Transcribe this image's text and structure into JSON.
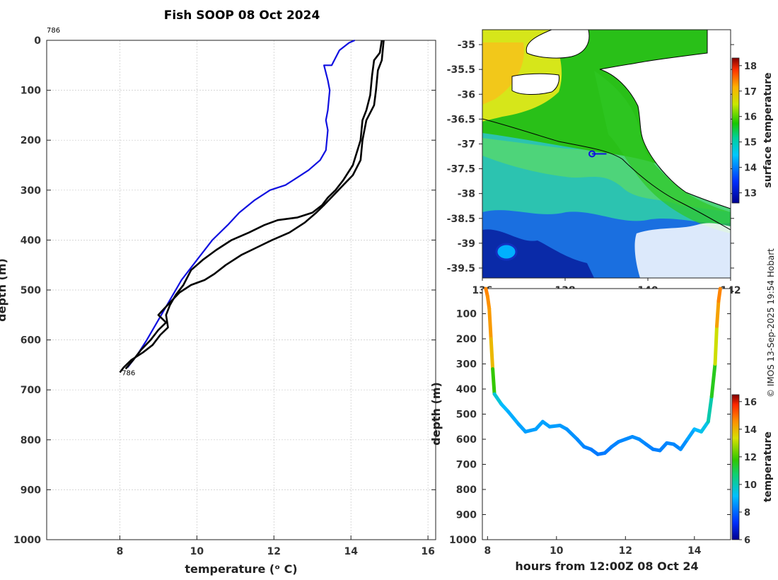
{
  "figure_title": "Fish SOOP 08 Oct 2024",
  "credit": "© IMOS 13-Sep-2025 19:54 Hobart",
  "colors": {
    "black_trace": "#000000",
    "blue_trace": "#1010e0",
    "grid": "#c8c8c8",
    "land": "#ffffff"
  },
  "chart_data": [
    {
      "id": "profile",
      "type": "line",
      "xlabel": "temperature (ᵒ C)",
      "ylabel": "depth (m)",
      "xlim": [
        6.1,
        16.2
      ],
      "ylim": [
        0,
        1000
      ],
      "xticks": [
        8,
        10,
        12,
        14,
        16
      ],
      "yticks": [
        0,
        100,
        200,
        300,
        400,
        500,
        600,
        700,
        800,
        900,
        1000
      ],
      "annotations": [
        {
          "text": "786",
          "x": 6.1,
          "y": -20
        },
        {
          "text": "786",
          "x": 8.05,
          "y": 668
        }
      ],
      "series": [
        {
          "name": "profile-blue",
          "color": "#1010e0",
          "points": [
            [
              14.1,
              0
            ],
            [
              13.95,
              5
            ],
            [
              13.7,
              20
            ],
            [
              13.5,
              50
            ],
            [
              13.3,
              50
            ],
            [
              13.4,
              80
            ],
            [
              13.45,
              100
            ],
            [
              13.4,
              140
            ],
            [
              13.35,
              160
            ],
            [
              13.4,
              180
            ],
            [
              13.35,
              220
            ],
            [
              13.2,
              240
            ],
            [
              12.9,
              260
            ],
            [
              12.6,
              275
            ],
            [
              12.3,
              290
            ],
            [
              11.9,
              300
            ],
            [
              11.5,
              320
            ],
            [
              11.1,
              345
            ],
            [
              10.8,
              370
            ],
            [
              10.4,
              400
            ],
            [
              10.0,
              440
            ],
            [
              9.6,
              480
            ],
            [
              9.3,
              520
            ],
            [
              9.0,
              560
            ],
            [
              8.7,
              600
            ],
            [
              8.45,
              630
            ],
            [
              8.3,
              645
            ],
            [
              8.2,
              655
            ]
          ]
        },
        {
          "name": "profile-black-1",
          "color": "#000000",
          "points": [
            [
              14.8,
              0
            ],
            [
              14.75,
              25
            ],
            [
              14.6,
              40
            ],
            [
              14.55,
              70
            ],
            [
              14.5,
              110
            ],
            [
              14.4,
              140
            ],
            [
              14.3,
              160
            ],
            [
              14.25,
              200
            ],
            [
              14.05,
              250
            ],
            [
              13.8,
              280
            ],
            [
              13.6,
              300
            ],
            [
              13.4,
              315
            ],
            [
              13.25,
              330
            ],
            [
              13.0,
              345
            ],
            [
              12.6,
              355
            ],
            [
              12.1,
              360
            ],
            [
              11.75,
              370
            ],
            [
              11.35,
              385
            ],
            [
              10.9,
              400
            ],
            [
              10.5,
              420
            ],
            [
              10.15,
              440
            ],
            [
              9.85,
              460
            ],
            [
              9.65,
              490
            ],
            [
              9.45,
              510
            ],
            [
              9.3,
              530
            ],
            [
              9.2,
              550
            ],
            [
              9.25,
              575
            ],
            [
              9.05,
              590
            ],
            [
              8.85,
              610
            ],
            [
              8.6,
              625
            ],
            [
              8.3,
              640
            ],
            [
              8.1,
              655
            ],
            [
              8.0,
              665
            ]
          ]
        },
        {
          "name": "profile-black-2",
          "color": "#000000",
          "points": [
            [
              14.85,
              0
            ],
            [
              14.8,
              40
            ],
            [
              14.7,
              60
            ],
            [
              14.65,
              100
            ],
            [
              14.6,
              130
            ],
            [
              14.4,
              160
            ],
            [
              14.3,
              200
            ],
            [
              14.25,
              240
            ],
            [
              14.05,
              270
            ],
            [
              13.8,
              290
            ],
            [
              13.55,
              310
            ],
            [
              13.3,
              330
            ],
            [
              13.1,
              345
            ],
            [
              12.8,
              365
            ],
            [
              12.4,
              385
            ],
            [
              11.95,
              400
            ],
            [
              11.55,
              415
            ],
            [
              11.15,
              430
            ],
            [
              10.75,
              450
            ],
            [
              10.45,
              468
            ],
            [
              10.2,
              480
            ],
            [
              9.85,
              490
            ],
            [
              9.55,
              505
            ],
            [
              9.3,
              525
            ],
            [
              9.0,
              550
            ],
            [
              9.2,
              565
            ],
            [
              9.0,
              580
            ],
            [
              8.8,
              600
            ],
            [
              8.55,
              620
            ],
            [
              8.35,
              640
            ],
            [
              8.15,
              658
            ]
          ]
        }
      ]
    },
    {
      "id": "map",
      "type": "heatmap",
      "xticks": [
        136,
        138,
        140,
        142
      ],
      "yticks": [
        -35,
        -35.5,
        -36,
        -36.5,
        -37,
        -37.5,
        -38,
        -38.5,
        -39,
        -39.5
      ],
      "xlim": [
        136,
        142
      ],
      "ylim": [
        -39.7,
        -34.7
      ],
      "colorbar": {
        "label": "surface temperature",
        "ticks": [
          13,
          14,
          15,
          16,
          17,
          18
        ],
        "range": [
          12.6,
          18.3
        ]
      },
      "track": {
        "name": "ship-track",
        "points": [
          [
            138.65,
            -37.2
          ],
          [
            139.0,
            -37.2
          ]
        ]
      }
    },
    {
      "id": "section",
      "type": "line",
      "xlabel": "hours from 12:00Z 08 Oct 24",
      "ylabel": "depth (m)",
      "xlim": [
        7.85,
        15.05
      ],
      "ylim": [
        1000,
        0
      ],
      "xticks": [
        8,
        10,
        12,
        14
      ],
      "yticks": [
        100,
        200,
        300,
        400,
        500,
        600,
        700,
        800,
        900,
        1000
      ],
      "colorbar": {
        "label": "temperature",
        "ticks": [
          6,
          8,
          10,
          12,
          14,
          16
        ],
        "range": [
          6,
          16.5
        ]
      },
      "series": [
        {
          "name": "section-trace",
          "points": [
            [
              7.95,
              0,
              14.8
            ],
            [
              8.0,
              30,
              14.6
            ],
            [
              8.05,
              80,
              14.5
            ],
            [
              8.1,
              200,
              14.3
            ],
            [
              8.15,
              320,
              13.6
            ],
            [
              8.2,
              420,
              10.0
            ],
            [
              8.4,
              460,
              9.2
            ],
            [
              8.6,
              490,
              9.0
            ],
            [
              8.9,
              540,
              8.8
            ],
            [
              9.1,
              570,
              8.7
            ],
            [
              9.4,
              560,
              8.7
            ],
            [
              9.6,
              530,
              8.8
            ],
            [
              9.8,
              550,
              8.7
            ],
            [
              10.1,
              545,
              8.7
            ],
            [
              10.3,
              560,
              8.6
            ],
            [
              10.6,
              600,
              8.5
            ],
            [
              10.8,
              630,
              8.4
            ],
            [
              11.0,
              640,
              8.3
            ],
            [
              11.2,
              660,
              8.2
            ],
            [
              11.4,
              655,
              8.2
            ],
            [
              11.6,
              630,
              8.3
            ],
            [
              11.8,
              610,
              8.4
            ],
            [
              12.0,
              600,
              8.4
            ],
            [
              12.2,
              590,
              8.5
            ],
            [
              12.4,
              600,
              8.5
            ],
            [
              12.6,
              620,
              8.4
            ],
            [
              12.8,
              640,
              8.3
            ],
            [
              13.0,
              645,
              8.3
            ],
            [
              13.2,
              615,
              8.4
            ],
            [
              13.4,
              620,
              8.4
            ],
            [
              13.6,
              640,
              8.4
            ],
            [
              13.8,
              600,
              8.6
            ],
            [
              14.0,
              560,
              9.0
            ],
            [
              14.2,
              570,
              9.2
            ],
            [
              14.4,
              530,
              9.6
            ],
            [
              14.5,
              430,
              10.5
            ],
            [
              14.6,
              300,
              12.5
            ],
            [
              14.65,
              150,
              14.0
            ],
            [
              14.7,
              50,
              14.6
            ],
            [
              14.75,
              0,
              14.8
            ]
          ]
        }
      ]
    }
  ]
}
